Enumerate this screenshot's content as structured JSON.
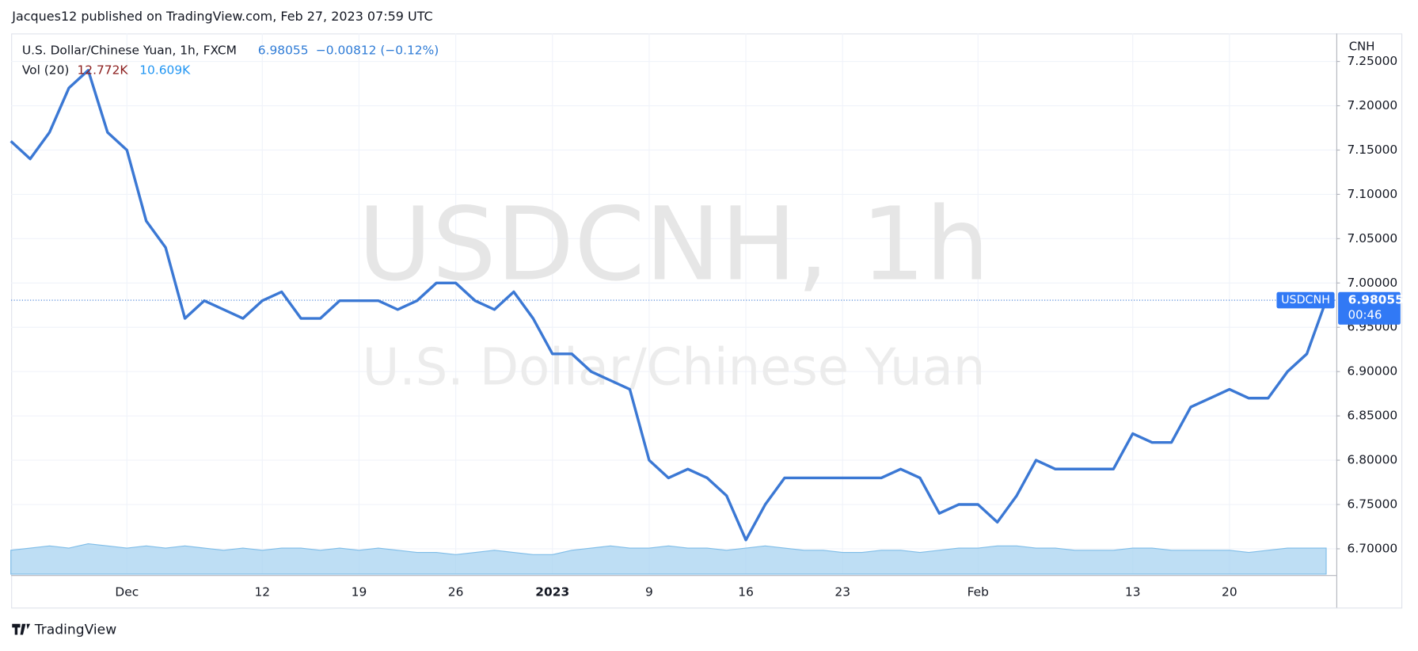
{
  "header": "Jacques12 published on TradingView.com, Feb 27, 2023 07:59 UTC",
  "footer": "TradingView",
  "chart_data": {
    "type": "line",
    "title": "U.S. Dollar/Chinese Yuan, 1h, FXCM",
    "change": "−0.00812 (−0.12%)",
    "watermark": "USDCNH, 1h",
    "watermark_subtitle": "U.S. Dollar/Chinese Yuan",
    "currency": "CNH",
    "symbol": "USDCNH",
    "countdown": "00:46",
    "volume_label": "Vol (20)",
    "volume_value": "12.772K",
    "volume_ma": "10.609K",
    "color": "#3b78d4",
    "volume_color": "#a8d3f0",
    "categories": [
      null,
      null,
      null,
      null,
      null,
      null,
      "Dec",
      null,
      null,
      null,
      null,
      null,
      null,
      "12",
      null,
      null,
      null,
      null,
      "19",
      null,
      null,
      null,
      null,
      "26",
      null,
      null,
      null,
      null,
      "2023",
      null,
      null,
      null,
      null,
      "9",
      null,
      null,
      null,
      null,
      "16",
      null,
      null,
      null,
      null,
      "23",
      null,
      null,
      null,
      null,
      null,
      null,
      "Feb",
      null,
      null,
      null,
      null,
      null,
      null,
      null,
      "13",
      null,
      null,
      null,
      null,
      "20",
      null,
      null,
      null,
      null,
      null
    ],
    "values": [
      7.16,
      7.14,
      7.17,
      7.22,
      7.24,
      7.17,
      7.15,
      7.07,
      7.04,
      6.96,
      6.98,
      6.97,
      6.96,
      6.98,
      6.99,
      6.96,
      6.96,
      6.98,
      6.98,
      6.98,
      6.97,
      6.98,
      7.0,
      7.0,
      6.98,
      6.97,
      6.99,
      6.96,
      6.92,
      6.92,
      6.9,
      6.89,
      6.88,
      6.8,
      6.78,
      6.79,
      6.78,
      6.76,
      6.71,
      6.75,
      6.78,
      6.78,
      6.78,
      6.78,
      6.78,
      6.78,
      6.79,
      6.78,
      6.74,
      6.75,
      6.75,
      6.73,
      6.76,
      6.8,
      6.79,
      6.79,
      6.79,
      6.79,
      6.83,
      6.82,
      6.82,
      6.86,
      6.87,
      6.88,
      6.87,
      6.87,
      6.9,
      6.92,
      6.98055
    ],
    "volume": [
      11,
      12,
      13,
      12,
      14,
      13,
      12,
      13,
      12,
      13,
      12,
      11,
      12,
      11,
      12,
      12,
      11,
      12,
      11,
      12,
      11,
      10,
      10,
      9,
      10,
      11,
      10,
      9,
      9,
      11,
      12,
      13,
      12,
      12,
      13,
      12,
      12,
      11,
      12,
      13,
      12,
      11,
      11,
      10,
      10,
      11,
      11,
      10,
      11,
      12,
      12,
      13,
      13,
      12,
      12,
      11,
      11,
      11,
      12,
      12,
      11,
      11,
      11,
      11,
      10,
      11,
      12,
      12,
      12
    ],
    "volume_lim": [
      0,
      50
    ],
    "ylim": [
      6.6714,
      7.2816
    ],
    "yticks": [
      {
        "value": 6.7,
        "label": "6.70000"
      },
      {
        "value": 6.75,
        "label": "6.75000"
      },
      {
        "value": 6.8,
        "label": "6.80000"
      },
      {
        "value": 6.85,
        "label": "6.85000"
      },
      {
        "value": 6.9,
        "label": "6.90000"
      },
      {
        "value": 6.95,
        "label": "6.95000"
      },
      {
        "value": 7.0,
        "label": "7.00000"
      },
      {
        "value": 7.05,
        "label": "7.05000"
      },
      {
        "value": 7.1,
        "label": "7.10000"
      },
      {
        "value": 7.15,
        "label": "7.15000"
      },
      {
        "value": 7.2,
        "label": "7.20000"
      },
      {
        "value": 7.25,
        "label": "7.25000"
      }
    ],
    "grid": true
  }
}
